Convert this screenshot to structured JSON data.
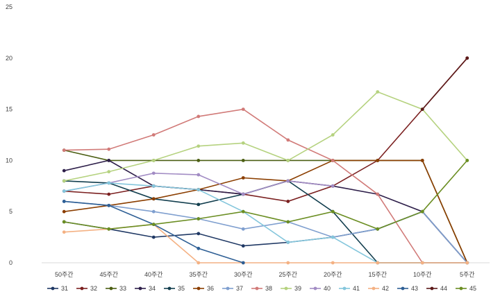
{
  "chart_data": {
    "type": "line",
    "title": "",
    "xlabel": "",
    "ylabel": "",
    "ylim": [
      0,
      25
    ],
    "yticks": [
      0,
      5,
      10,
      15,
      20,
      25
    ],
    "grid": "none",
    "legend": "bottom",
    "categories": [
      "50주간",
      "45주간",
      "40주간",
      "35주간",
      "30주간",
      "25주간",
      "20주간",
      "15주간",
      "10주간",
      "5주간"
    ],
    "series": [
      {
        "name": "31",
        "color": "#1f3864",
        "values": [
          4,
          3.3,
          2.5,
          2.85,
          1.65,
          2,
          2.5,
          3.3,
          5,
          0
        ]
      },
      {
        "name": "32",
        "color": "#7b2020",
        "values": [
          7,
          6.7,
          7.5,
          7.15,
          6.7,
          6,
          7.5,
          10,
          15,
          20
        ]
      },
      {
        "name": "33",
        "color": "#4b5e12",
        "values": [
          11,
          10,
          10,
          10,
          10,
          10,
          10,
          10,
          10,
          0
        ]
      },
      {
        "name": "34",
        "color": "#2e1f4a",
        "values": [
          9,
          10,
          7.5,
          7.15,
          6.7,
          8,
          7.5,
          6.7,
          5,
          0
        ]
      },
      {
        "name": "35",
        "color": "#123e4e",
        "values": [
          8,
          7.8,
          6.25,
          5.7,
          6.7,
          8,
          5,
          0,
          0,
          0
        ]
      },
      {
        "name": "36",
        "color": "#8b3e00",
        "values": [
          5,
          5.6,
          6.25,
          7.15,
          8.3,
          8,
          10,
          10,
          10,
          0
        ]
      },
      {
        "name": "37",
        "color": "#7f9fcf",
        "values": [
          6,
          5.6,
          5,
          4.3,
          3.3,
          4,
          2.5,
          3.3,
          5,
          0
        ]
      },
      {
        "name": "38",
        "color": "#d17a78",
        "values": [
          11,
          11.1,
          12.5,
          14.3,
          15,
          12,
          10,
          6.7,
          0,
          0
        ]
      },
      {
        "name": "39",
        "color": "#b5d27f",
        "values": [
          8,
          8.9,
          10,
          11.4,
          11.7,
          10,
          12.5,
          16.7,
          15,
          10
        ]
      },
      {
        "name": "40",
        "color": "#a28cc4",
        "values": [
          7,
          7.8,
          8.75,
          8.6,
          6.7,
          8,
          7.5,
          null,
          null,
          null
        ]
      },
      {
        "name": "41",
        "color": "#84c6dc",
        "values": [
          7,
          7.8,
          7.5,
          7.15,
          5,
          2,
          2.5,
          0,
          0,
          0
        ]
      },
      {
        "name": "42",
        "color": "#f4b183",
        "values": [
          3,
          3.3,
          3.75,
          0,
          0,
          0,
          0,
          0,
          0,
          0
        ]
      },
      {
        "name": "43",
        "color": "#2e5f95",
        "values": [
          6,
          5.6,
          3.75,
          1.4,
          0,
          null,
          null,
          null,
          null,
          null
        ]
      },
      {
        "name": "44",
        "color": "#5c1a1a",
        "values": [
          null,
          null,
          null,
          null,
          null,
          null,
          null,
          null,
          15,
          20
        ]
      },
      {
        "name": "45",
        "color": "#6b8e23",
        "values": [
          4,
          3.3,
          3.75,
          4.3,
          5,
          4,
          5,
          3.3,
          5,
          10
        ]
      }
    ]
  }
}
